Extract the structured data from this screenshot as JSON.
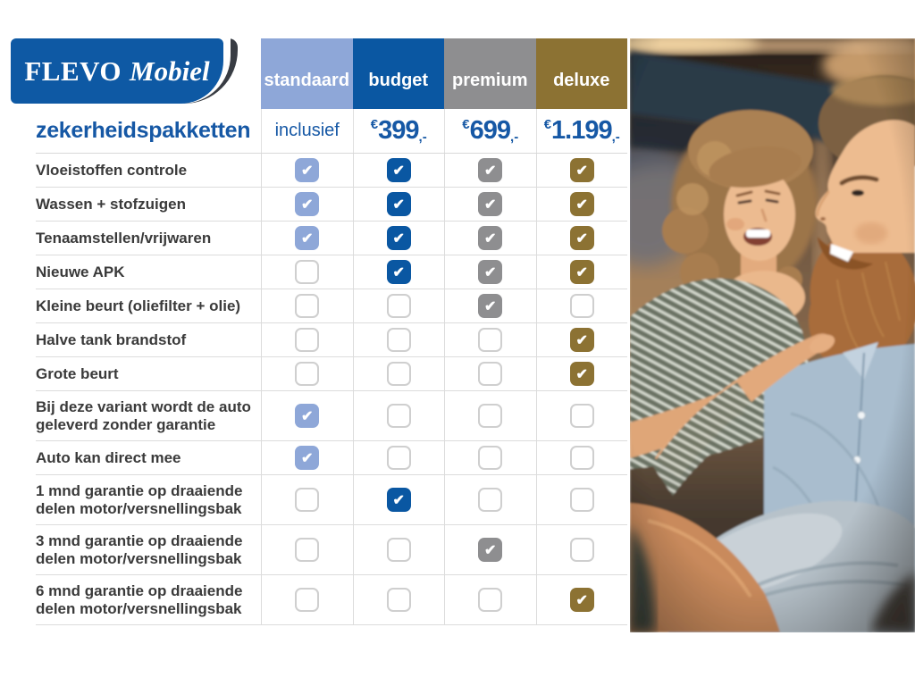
{
  "logo": {
    "brand_first": "FLEVO",
    "brand_second": "Mobiel",
    "bg_color": "#0e59a4",
    "swoosh_color": "#383c43"
  },
  "page_title": "zekerheidspakketten",
  "accent_blue": "#1658a5",
  "icons": {
    "check_glyph": "✔"
  },
  "columns": [
    {
      "id": "standaard",
      "label": "standaard",
      "color": "#8ea7d8",
      "price_text": "inclusief"
    },
    {
      "id": "budget",
      "label": "budget",
      "color": "#0a57a2",
      "price_currency": "€",
      "price_amount": "399",
      "price_suffix": ",-"
    },
    {
      "id": "premium",
      "label": "premium",
      "color": "#8e8e90",
      "price_currency": "€",
      "price_amount": "699",
      "price_suffix": ",-"
    },
    {
      "id": "deluxe",
      "label": "deluxe",
      "color": "#8c7233",
      "price_currency": "€",
      "price_amount": "1.199",
      "price_suffix": ",-"
    }
  ],
  "rows": [
    {
      "label": "Vloeistoffen controle",
      "checks": [
        true,
        true,
        true,
        true
      ],
      "tall": false
    },
    {
      "label": "Wassen + stofzuigen",
      "checks": [
        true,
        true,
        true,
        true
      ],
      "tall": false
    },
    {
      "label": "Tenaamstellen/vrijwaren",
      "checks": [
        true,
        true,
        true,
        true
      ],
      "tall": false
    },
    {
      "label": "Nieuwe APK",
      "checks": [
        false,
        true,
        true,
        true
      ],
      "tall": false
    },
    {
      "label": "Kleine beurt (oliefilter + olie)",
      "checks": [
        false,
        false,
        true,
        false
      ],
      "tall": false
    },
    {
      "label": "Halve tank brandstof",
      "checks": [
        false,
        false,
        false,
        true
      ],
      "tall": false
    },
    {
      "label": "Grote beurt",
      "checks": [
        false,
        false,
        false,
        true
      ],
      "tall": false
    },
    {
      "label": "Bij deze variant wordt de auto geleverd zonder garantie",
      "checks": [
        true,
        false,
        false,
        false
      ],
      "tall": true
    },
    {
      "label": "Auto kan direct mee",
      "checks": [
        true,
        false,
        false,
        false
      ],
      "tall": false
    },
    {
      "label": "1 mnd garantie op draaiende delen motor/versnellingsbak",
      "checks": [
        false,
        true,
        false,
        false
      ],
      "tall": true
    },
    {
      "label": "3 mnd garantie op draaiende delen motor/versnellingsbak",
      "checks": [
        false,
        false,
        true,
        false
      ],
      "tall": true
    },
    {
      "label": "6 mnd garantie op draaiende delen motor/versnellingsbak",
      "checks": [
        false,
        false,
        false,
        true
      ],
      "tall": true
    }
  ],
  "chart_data": {
    "type": "table",
    "title": "zekerheidspakketten",
    "columns": [
      "standaard",
      "budget",
      "premium",
      "deluxe"
    ],
    "prices": [
      "inclusief",
      "€399,-",
      "€699,-",
      "€1.199,-"
    ],
    "row_labels": [
      "Vloeistoffen controle",
      "Wassen + stofzuigen",
      "Tenaamstellen/vrijwaren",
      "Nieuwe APK",
      "Kleine beurt (oliefilter + olie)",
      "Halve tank brandstof",
      "Grote beurt",
      "Bij deze variant wordt de auto geleverd zonder garantie",
      "Auto kan direct mee",
      "1 mnd garantie op draaiende delen motor/versnellingsbak",
      "3 mnd garantie op draaiende delen motor/versnellingsbak",
      "6 mnd garantie op draaiende delen motor/versnellingsbak"
    ],
    "matrix": [
      [
        true,
        true,
        true,
        true
      ],
      [
        true,
        true,
        true,
        true
      ],
      [
        true,
        true,
        true,
        true
      ],
      [
        false,
        true,
        true,
        true
      ],
      [
        false,
        false,
        true,
        false
      ],
      [
        false,
        false,
        false,
        true
      ],
      [
        false,
        false,
        false,
        true
      ],
      [
        true,
        false,
        false,
        false
      ],
      [
        true,
        false,
        false,
        false
      ],
      [
        false,
        true,
        false,
        false
      ],
      [
        false,
        false,
        true,
        false
      ],
      [
        false,
        false,
        false,
        true
      ]
    ]
  }
}
